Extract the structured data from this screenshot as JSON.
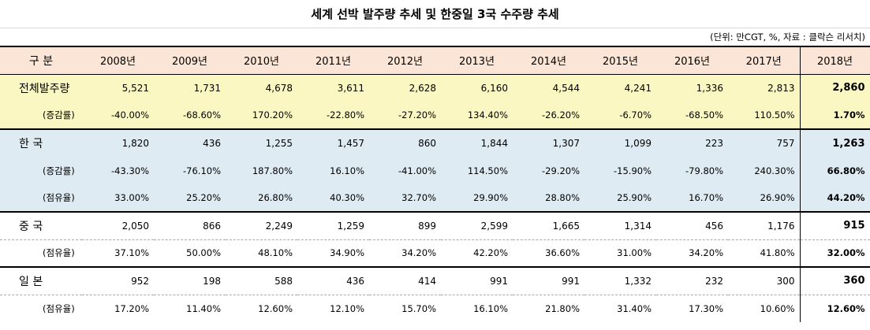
{
  "title": "세계 선박 발주량 추세 및 한중일 3국 수주량 추세",
  "unit_note": "(단위: 만CGT, %, 자료 : 클락슨 리서치)",
  "header": [
    "구  분",
    "2008년",
    "2009년",
    "2010년",
    "2011년",
    "2012년",
    "2013년",
    "2014년",
    "2015년",
    "2016년",
    "2017년",
    "2018년"
  ],
  "rows": [
    {
      "label": "전체발주량",
      "values": [
        "5,521",
        "1,731",
        "4,678",
        "3,611",
        "2,628",
        "6,160",
        "4,544",
        "4,241",
        "1,336",
        "2,813",
        "2,860"
      ]
    },
    {
      "label": "(증감률)",
      "values": [
        "-40.00%",
        "-68.60%",
        "170.20%",
        "-22.80%",
        "-27.20%",
        "134.40%",
        "-26.20%",
        "-6.70%",
        "-68.50%",
        "110.50%",
        "1.70%"
      ]
    },
    {
      "label": "한  국",
      "values": [
        "1,820",
        "436",
        "1,255",
        "1,457",
        "860",
        "1,844",
        "1,307",
        "1,099",
        "223",
        "757",
        "1,263"
      ]
    },
    {
      "label": "(증감률)",
      "values": [
        "-43.30%",
        "-76.10%",
        "187.80%",
        "16.10%",
        "-41.00%",
        "114.50%",
        "-29.20%",
        "-15.90%",
        "-79.80%",
        "240.30%",
        "66.80%"
      ]
    },
    {
      "label": "(점유율)",
      "values": [
        "33.00%",
        "25.20%",
        "26.80%",
        "40.30%",
        "32.70%",
        "29.90%",
        "28.80%",
        "25.90%",
        "16.70%",
        "26.90%",
        "44.20%"
      ]
    },
    {
      "label": "중  국",
      "values": [
        "2,050",
        "866",
        "2,249",
        "1,259",
        "899",
        "2,599",
        "1,665",
        "1,314",
        "456",
        "1,176",
        "915"
      ]
    },
    {
      "label": "(점유율)",
      "values": [
        "37.10%",
        "50.00%",
        "48.10%",
        "34.90%",
        "34.20%",
        "42.20%",
        "36.60%",
        "31.00%",
        "34.20%",
        "41.80%",
        "32.00%"
      ]
    },
    {
      "label": "일  본",
      "values": [
        "952",
        "198",
        "588",
        "436",
        "414",
        "991",
        "991",
        "1,332",
        "232",
        "300",
        "360"
      ]
    },
    {
      "label": "(점유율)",
      "values": [
        "17.20%",
        "11.40%",
        "12.60%",
        "12.10%",
        "15.70%",
        "16.10%",
        "21.80%",
        "31.40%",
        "17.30%",
        "10.60%",
        "12.60%"
      ]
    }
  ]
}
